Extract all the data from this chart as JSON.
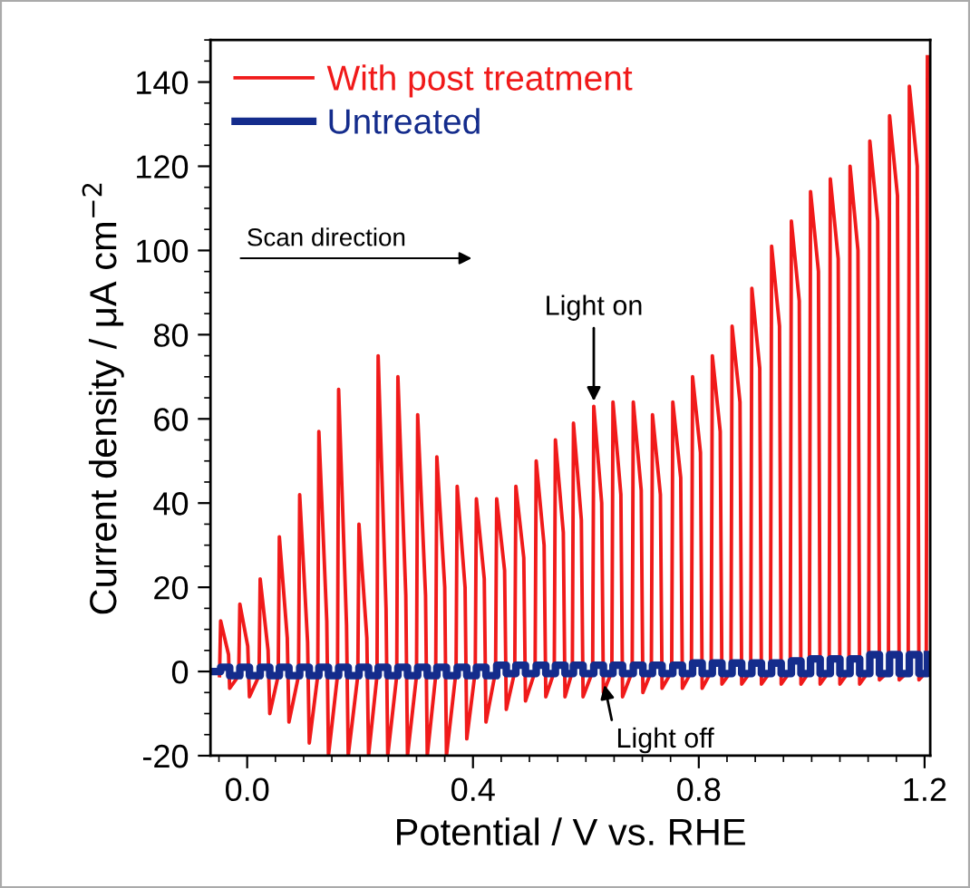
{
  "chart_data": {
    "type": "line",
    "xlabel": "Potential / V vs. RHE",
    "ylabel": "Current density / μA cm$^{−2}$",
    "xlim": [
      -0.065,
      1.21
    ],
    "xticks": [
      {
        "value": 0.0,
        "label": "0.0"
      },
      0.4,
      0.8,
      1.2
    ],
    "ylim": [
      -20,
      150
    ],
    "yticks": [
      -20,
      0,
      20,
      40,
      60,
      80,
      100,
      120,
      140
    ],
    "legend": "top left",
    "grid": false,
    "series": [
      {
        "name": "With post treatment",
        "color": "#f01a1a",
        "x": [
          -0.049,
          -0.047,
          -0.033,
          -0.031,
          -0.015,
          -0.013,
          0.001,
          0.004,
          0.021,
          0.023,
          0.037,
          0.04,
          0.055,
          0.057,
          0.071,
          0.074,
          0.091,
          0.093,
          0.107,
          0.11,
          0.125,
          0.127,
          0.141,
          0.144,
          0.16,
          0.162,
          0.176,
          0.179,
          0.196,
          0.198,
          0.212,
          0.215,
          0.23,
          0.232,
          0.246,
          0.249,
          0.265,
          0.267,
          0.281,
          0.284,
          0.3,
          0.302,
          0.316,
          0.319,
          0.334,
          0.336,
          0.35,
          0.353,
          0.37,
          0.372,
          0.386,
          0.389,
          0.404,
          0.406,
          0.42,
          0.423,
          0.44,
          0.442,
          0.456,
          0.459,
          0.474,
          0.476,
          0.49,
          0.493,
          0.51,
          0.512,
          0.526,
          0.529,
          0.544,
          0.546,
          0.56,
          0.563,
          0.576,
          0.578,
          0.592,
          0.595,
          0.612,
          0.614,
          0.628,
          0.631,
          0.646,
          0.648,
          0.662,
          0.665,
          0.682,
          0.684,
          0.698,
          0.701,
          0.716,
          0.718,
          0.732,
          0.735,
          0.752,
          0.754,
          0.768,
          0.771,
          0.787,
          0.789,
          0.803,
          0.806,
          0.822,
          0.824,
          0.838,
          0.841,
          0.857,
          0.859,
          0.873,
          0.876,
          0.892,
          0.894,
          0.908,
          0.911,
          0.927,
          0.929,
          0.943,
          0.946,
          0.962,
          0.964,
          0.978,
          0.981,
          0.996,
          0.998,
          1.012,
          1.015,
          1.031,
          1.033,
          1.047,
          1.05,
          1.066,
          1.068,
          1.082,
          1.085,
          1.101,
          1.103,
          1.117,
          1.12,
          1.136,
          1.138,
          1.152,
          1.155,
          1.171,
          1.173,
          1.187,
          1.19,
          1.203,
          1.205
        ],
        "values": [
          -1,
          12,
          4,
          -4,
          -1,
          16,
          6,
          -6,
          -1,
          22,
          5,
          -10,
          -1,
          32,
          8,
          -12,
          -1,
          42,
          7,
          -17,
          -1,
          57,
          12,
          -20,
          -1,
          67,
          11,
          -20,
          -1,
          35,
          8,
          -20,
          -1,
          75,
          15,
          -20,
          -1,
          70,
          18,
          -20,
          -1,
          61,
          18,
          -20,
          -1,
          51,
          20,
          -20,
          0,
          44,
          20,
          -16,
          0,
          41,
          22,
          -12,
          0,
          41,
          24,
          -9,
          0,
          44,
          27,
          -7,
          0,
          50,
          30,
          -6,
          0,
          55,
          33,
          -6,
          0,
          59,
          36,
          -6,
          0,
          63,
          40,
          -5,
          0,
          64,
          42,
          -6,
          0,
          64,
          43,
          -5,
          0,
          61,
          42,
          -4,
          0,
          64,
          46,
          -4,
          0,
          70,
          52,
          -4,
          0,
          75,
          57,
          -3,
          0,
          82,
          64,
          -3,
          0,
          91,
          72,
          -3,
          0,
          101,
          82,
          -3,
          0,
          107,
          88,
          -3,
          0,
          114,
          95,
          -3,
          0,
          117,
          98,
          -3,
          0,
          120,
          100,
          -3,
          0,
          126,
          107,
          -2,
          0,
          132,
          113,
          -2,
          0,
          139,
          120,
          -2,
          0,
          146
        ]
      },
      {
        "name": "Untreated",
        "color": "#142c8c",
        "type": "step",
        "x": [
          -0.065,
          -0.047,
          -0.031,
          -0.013,
          0.004,
          0.023,
          0.04,
          0.057,
          0.074,
          0.093,
          0.11,
          0.127,
          0.144,
          0.162,
          0.179,
          0.198,
          0.215,
          0.232,
          0.249,
          0.267,
          0.284,
          0.302,
          0.319,
          0.336,
          0.353,
          0.372,
          0.389,
          0.406,
          0.423,
          0.442,
          0.459,
          0.476,
          0.493,
          0.512,
          0.529,
          0.546,
          0.563,
          0.578,
          0.595,
          0.614,
          0.631,
          0.648,
          0.665,
          0.684,
          0.701,
          0.718,
          0.735,
          0.754,
          0.771,
          0.789,
          0.806,
          0.824,
          0.841,
          0.859,
          0.876,
          0.894,
          0.911,
          0.929,
          0.946,
          0.964,
          0.981,
          0.998,
          1.015,
          1.033,
          1.05,
          1.068,
          1.085,
          1.103,
          1.12,
          1.138,
          1.155,
          1.173,
          1.19,
          1.205
        ],
        "values": [
          0,
          1,
          -1,
          1,
          -1,
          1,
          -1,
          1,
          -1,
          1,
          -1,
          1,
          -1,
          1,
          -1,
          1,
          -1,
          1,
          -1,
          1,
          -1,
          1,
          -1,
          1,
          -1,
          1,
          -1,
          1,
          -1,
          1.5,
          -0.5,
          1.5,
          -0.5,
          1.5,
          -0.5,
          1.5,
          -0.5,
          1.5,
          -0.5,
          1.5,
          -0.5,
          1.5,
          -0.5,
          1.5,
          -0.5,
          1.5,
          -0.5,
          1.5,
          -0.5,
          2,
          -0.5,
          2,
          -0.5,
          2,
          -0.5,
          2,
          -0.5,
          2,
          -0.5,
          2.5,
          -0.5,
          3,
          -0.5,
          3,
          -0.5,
          3,
          -0.5,
          4,
          -0.5,
          4,
          -0.5,
          4,
          -0.5,
          4
        ]
      }
    ],
    "annotations": [
      "Scan direction",
      {
        "text": "Light on",
        "x": 0.614,
        "y": 63
      },
      {
        "text": "Light off",
        "x": 0.631,
        "y": -2
      }
    ]
  }
}
